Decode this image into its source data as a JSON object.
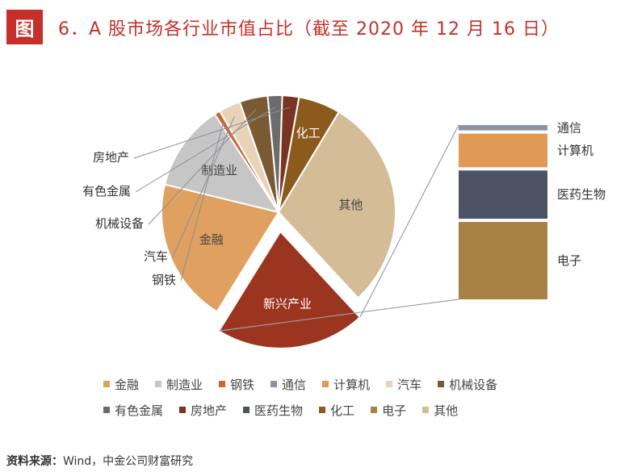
{
  "header": {
    "badge": "图",
    "title": "6．A 股市场各行业市值占比（截至 2020 年 12 月 16 日）"
  },
  "chart_data": {
    "type": "pie",
    "slices": [
      {
        "name": "其他",
        "value": 29.5,
        "color": "#d4bc96",
        "label": "其他"
      },
      {
        "name": "新兴产业",
        "value": 20.7,
        "color": "#9b3520",
        "label": "新兴产业",
        "exploded": true
      },
      {
        "name": "金融",
        "value": 20.0,
        "color": "#e0a060",
        "label": "金融"
      },
      {
        "name": "制造业",
        "value": 12.0,
        "color": "#c6c6c6",
        "label": "制造业"
      },
      {
        "name": "钢铁",
        "value": 0.8,
        "color": "#c9673a",
        "label": "钢铁"
      },
      {
        "name": "汽车",
        "value": 3.0,
        "color": "#e8d3b8",
        "label": "汽车"
      },
      {
        "name": "机械设备",
        "value": 3.9,
        "color": "#7a5a33",
        "label": "机械设备"
      },
      {
        "name": "有色金属",
        "value": 2.0,
        "color": "#6c6c6c",
        "label": "有色金属"
      },
      {
        "name": "房地产",
        "value": 2.3,
        "color": "#7b3322",
        "label": "房地产"
      },
      {
        "name": "化工",
        "value": 5.8,
        "color": "#8c5a1c",
        "label": "化工"
      }
    ],
    "breakdown": {
      "of": "新兴产业",
      "segments": [
        {
          "name": "通信",
          "value": 1.0,
          "color": "#8d92a6"
        },
        {
          "name": "计算机",
          "value": 4.3,
          "color": "#e09a55"
        },
        {
          "name": "医药生物",
          "value": 6.0,
          "color": "#4d5264"
        },
        {
          "name": "电子",
          "value": 9.4,
          "color": "#a88245"
        }
      ]
    },
    "legend": [
      {
        "name": "金融",
        "color": "#e0a060"
      },
      {
        "name": "制造业",
        "color": "#c6c6c6"
      },
      {
        "name": "钢铁",
        "color": "#c9673a"
      },
      {
        "name": "通信",
        "color": "#8d92a6"
      },
      {
        "name": "计算机",
        "color": "#e09a55"
      },
      {
        "name": "汽车",
        "color": "#e8d3b8"
      },
      {
        "name": "机械设备",
        "color": "#7a5a33"
      },
      {
        "name": "有色金属",
        "color": "#6c6c6c"
      },
      {
        "name": "房地产",
        "color": "#7b3322"
      },
      {
        "name": "医药生物",
        "color": "#4d5264"
      },
      {
        "name": "化工",
        "color": "#8c5a1c"
      },
      {
        "name": "电子",
        "color": "#a88245"
      },
      {
        "name": "其他",
        "color": "#d4bc96"
      }
    ],
    "legend_placement": "bottom"
  },
  "source": {
    "prefix": "资料来源：",
    "text": "Wind，中金公司财富研究"
  }
}
